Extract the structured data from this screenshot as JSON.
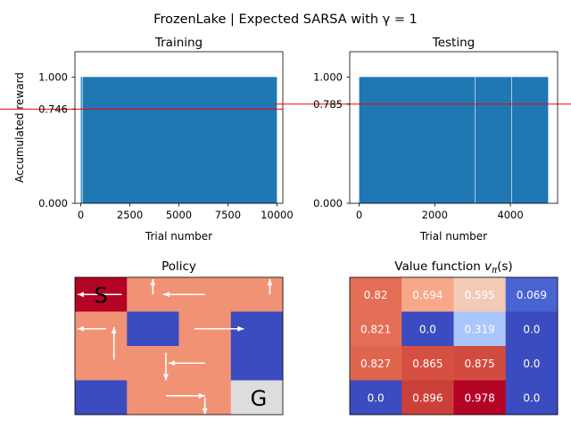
{
  "figure": {
    "suptitle": "FrozenLake | Expected SARSA with γ = 1"
  },
  "chart_data": [
    {
      "type": "bar",
      "title": "Training",
      "xlabel": "Trial number",
      "ylabel": "Accumulated reward",
      "xlim": [
        -300,
        10300
      ],
      "ylim": [
        0,
        1.2
      ],
      "xticks": [
        0,
        2500,
        5000,
        7500,
        10000
      ],
      "xtick_labels": [
        "0",
        "2500",
        "5000",
        "7500",
        "10000"
      ],
      "yticks": [
        0.0,
        0.746,
        1.0
      ],
      "ytick_labels": [
        "0.000",
        "0.746",
        "1.000"
      ],
      "mean_line": 0.746,
      "mean_line_color": "#ff0000",
      "bar_color": "#1f77b4",
      "bar_segments": [
        {
          "x0": 0,
          "x1": 55,
          "value": 1.0
        },
        {
          "x0": 90,
          "x1": 10000,
          "value": 1.0
        }
      ]
    },
    {
      "type": "bar",
      "title": "Testing",
      "xlabel": "Trial number",
      "ylabel": "",
      "xlim": [
        -250,
        5250
      ],
      "ylim": [
        0,
        1.2
      ],
      "xticks": [
        0,
        2000,
        4000
      ],
      "xtick_labels": [
        "0",
        "2000",
        "4000"
      ],
      "yticks": [
        0.0,
        0.785,
        1.0
      ],
      "ytick_labels": [
        "0.000",
        "0.785",
        "1.000"
      ],
      "mean_line": 0.785,
      "mean_line_color": "#ff0000",
      "bar_color": "#1f77b4",
      "bar_segments": [
        {
          "x0": 0,
          "x1": 3060,
          "value": 1.0
        },
        {
          "x0": 3075,
          "x1": 4025,
          "value": 1.0
        },
        {
          "x0": 4040,
          "x1": 5000,
          "value": 1.0
        }
      ]
    },
    {
      "type": "heatmap",
      "title": "Policy",
      "rows": 4,
      "cols": 4,
      "cell_colors": [
        [
          "#b40426",
          "#f29274",
          "#f29274",
          "#f29274"
        ],
        [
          "#f29274",
          "#3b4cc0",
          "#f29274",
          "#3b4cc0"
        ],
        [
          "#f29274",
          "#f29274",
          "#f29274",
          "#3b4cc0"
        ],
        [
          "#3b4cc0",
          "#f29274",
          "#f29274",
          "#dddddd"
        ]
      ],
      "cell_labels": [
        {
          "row": 0,
          "col": 0,
          "text": "S"
        },
        {
          "row": 3,
          "col": 3,
          "text": "G"
        }
      ],
      "arrow_color": "#ffffff",
      "arrows": [
        {
          "x1": 0.9,
          "y1": 0.5,
          "x2": 0.05,
          "y2": 0.5
        },
        {
          "x1": 1.5,
          "y1": 0.5,
          "x2": 1.5,
          "y2": 0.05
        },
        {
          "x1": 2.5,
          "y1": 0.5,
          "x2": 1.7,
          "y2": 0.5
        },
        {
          "x1": 3.75,
          "y1": 0.5,
          "x2": 3.75,
          "y2": 0.05
        },
        {
          "x1": 0.6,
          "y1": 1.5,
          "x2": 0.05,
          "y2": 1.5
        },
        {
          "x1": 0.75,
          "y1": 2.4,
          "x2": 0.75,
          "y2": 1.45
        },
        {
          "x1": 2.3,
          "y1": 1.5,
          "x2": 3.25,
          "y2": 1.5
        },
        {
          "x1": 2.5,
          "y1": 2.5,
          "x2": 1.8,
          "y2": 2.5
        },
        {
          "x1": 1.75,
          "y1": 2.2,
          "x2": 1.75,
          "y2": 3.0
        },
        {
          "x1": 1.75,
          "y1": 3.45,
          "x2": 2.5,
          "y2": 3.45
        },
        {
          "x1": 2.5,
          "y1": 3.5,
          "x2": 2.5,
          "y2": 4.0
        }
      ]
    },
    {
      "type": "heatmap",
      "title": "Value function v_π(s)",
      "title_main": "Value function ",
      "title_symbol": "v",
      "title_subscript": "π",
      "title_suffix": "(s)",
      "rows": 4,
      "cols": 4,
      "values": [
        [
          0.82,
          0.694,
          0.595,
          0.069
        ],
        [
          0.821,
          0.0,
          0.319,
          0.0
        ],
        [
          0.827,
          0.865,
          0.875,
          0.0
        ],
        [
          0.0,
          0.896,
          0.978,
          0.0
        ]
      ],
      "value_labels": [
        [
          "0.82",
          "0.694",
          "0.595",
          "0.069"
        ],
        [
          "0.821",
          "0.0",
          "0.319",
          "0.0"
        ],
        [
          "0.827",
          "0.865",
          "0.875",
          "0.0"
        ],
        [
          "0.0",
          "0.896",
          "0.978",
          "0.0"
        ]
      ],
      "cell_colors": [
        [
          "#e46e56",
          "#f7a889",
          "#f2cbb7",
          "#4a63d3"
        ],
        [
          "#e46e56",
          "#3b4cc0",
          "#aac7fd",
          "#3b4cc0"
        ],
        [
          "#e0654f",
          "#d55042",
          "#d24b40",
          "#3b4cc0"
        ],
        [
          "#3b4cc0",
          "#cc403a",
          "#b40426",
          "#3b4cc0"
        ]
      ],
      "label_color": "#ffffff"
    }
  ]
}
